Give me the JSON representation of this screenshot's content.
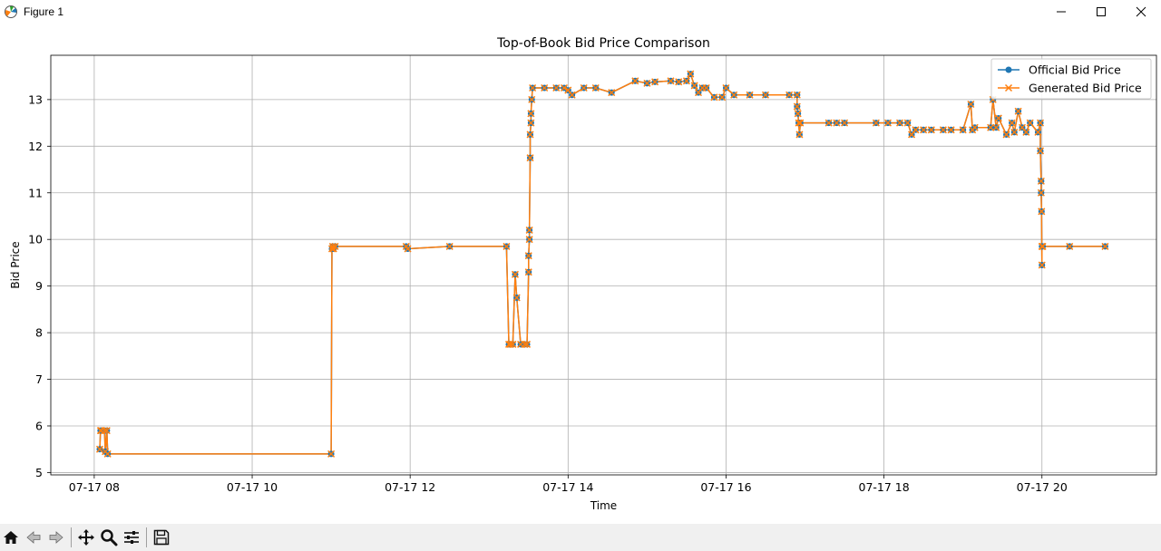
{
  "window": {
    "title": "Figure 1",
    "controls": [
      "minimize-icon",
      "maximize-icon",
      "close-icon"
    ]
  },
  "toolbar": {
    "buttons": [
      "home-icon",
      "back-icon",
      "forward-icon",
      "pan-icon",
      "zoom-icon",
      "configure-subplots-icon",
      "save-icon"
    ]
  },
  "chart_data": {
    "type": "line",
    "title": "Top-of-Book Bid Price Comparison",
    "xlabel": "Time",
    "ylabel": "Bid Price",
    "x_tick_labels": [
      "07-17 08",
      "07-17 10",
      "07-17 12",
      "07-17 14",
      "07-17 16",
      "07-17 18",
      "07-17 20"
    ],
    "x_tick_hours": [
      8,
      10,
      12,
      14,
      16,
      18,
      20
    ],
    "y_ticks": [
      5,
      6,
      7,
      8,
      9,
      10,
      11,
      12,
      13
    ],
    "xlim_hours": [
      7.45,
      21.45
    ],
    "ylim": [
      4.95,
      13.95
    ],
    "grid": true,
    "legend_position": "top-right",
    "series": [
      {
        "name": "Official Bid Price",
        "color": "#1f77b4",
        "marker": "circle"
      },
      {
        "name": "Generated Bid Price",
        "color": "#ff7f0e",
        "marker": "x"
      }
    ],
    "x_hours": [
      8.07,
      8.08,
      8.09,
      8.13,
      8.14,
      8.16,
      8.17,
      11.0,
      11.01,
      11.02,
      11.03,
      11.05,
      11.95,
      11.97,
      12.5,
      13.22,
      13.25,
      13.27,
      13.3,
      13.33,
      13.35,
      13.4,
      13.45,
      13.48,
      13.5,
      13.5,
      13.51,
      13.51,
      13.52,
      13.52,
      13.53,
      13.53,
      13.54,
      13.55,
      13.7,
      13.85,
      13.95,
      14.0,
      14.05,
      14.2,
      14.35,
      14.55,
      14.85,
      15.0,
      15.1,
      15.3,
      15.4,
      15.5,
      15.55,
      15.6,
      15.65,
      15.7,
      15.75,
      15.85,
      15.95,
      16.0,
      16.1,
      16.3,
      16.5,
      16.8,
      16.9,
      16.9,
      16.91,
      16.92,
      16.93,
      16.94,
      17.3,
      17.4,
      17.5,
      17.9,
      18.05,
      18.2,
      18.3,
      18.35,
      18.4,
      18.5,
      18.6,
      18.75,
      18.85,
      19.0,
      19.1,
      19.12,
      19.15,
      19.35,
      19.38,
      19.42,
      19.45,
      19.55,
      19.62,
      19.65,
      19.7,
      19.75,
      19.8,
      19.85,
      19.95,
      19.98,
      19.98,
      19.99,
      19.99,
      19.995,
      20.0,
      20.0,
      20.01,
      20.35,
      20.8
    ],
    "y_values": [
      5.5,
      5.9,
      5.9,
      5.9,
      5.45,
      5.9,
      5.4,
      5.4,
      9.8,
      9.85,
      9.8,
      9.85,
      9.85,
      9.8,
      9.85,
      9.85,
      7.75,
      7.75,
      7.75,
      9.25,
      8.75,
      7.75,
      7.75,
      7.75,
      9.3,
      9.65,
      10.0,
      10.2,
      11.75,
      12.25,
      12.5,
      12.7,
      13.0,
      13.25,
      13.25,
      13.25,
      13.25,
      13.2,
      13.1,
      13.25,
      13.25,
      13.15,
      13.4,
      13.35,
      13.38,
      13.4,
      13.38,
      13.4,
      13.55,
      13.3,
      13.15,
      13.25,
      13.25,
      13.05,
      13.05,
      13.25,
      13.1,
      13.1,
      13.1,
      13.1,
      13.1,
      12.85,
      12.7,
      12.5,
      12.25,
      12.5,
      12.5,
      12.5,
      12.5,
      12.5,
      12.5,
      12.5,
      12.5,
      12.25,
      12.35,
      12.35,
      12.35,
      12.35,
      12.35,
      12.35,
      12.9,
      12.35,
      12.4,
      12.4,
      13.0,
      12.4,
      12.6,
      12.25,
      12.5,
      12.3,
      12.75,
      12.4,
      12.3,
      12.5,
      12.3,
      12.5,
      11.9,
      11.25,
      11.0,
      10.6,
      9.45,
      9.85,
      9.85,
      9.85,
      9.85
    ]
  }
}
